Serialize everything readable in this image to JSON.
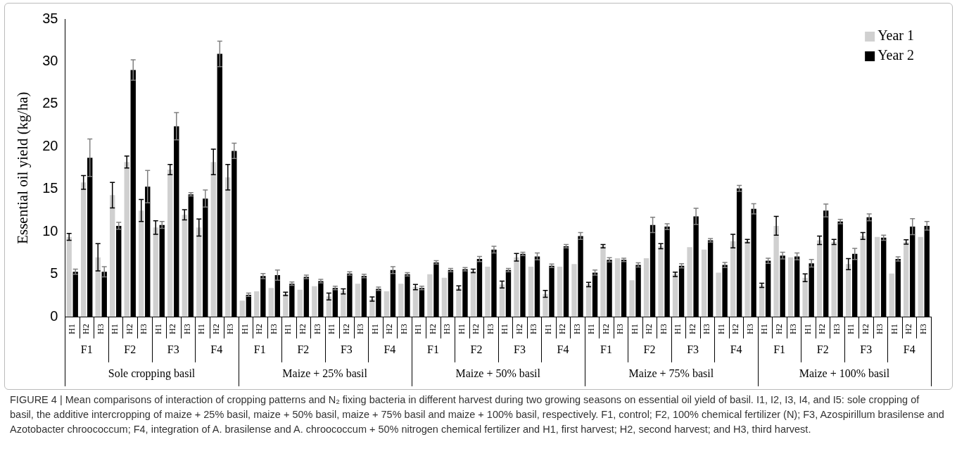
{
  "chart_data": {
    "type": "bar",
    "ylabel": "Essential oil yield (kg/ha)",
    "ylim": [
      0,
      35
    ],
    "yticks": [
      0,
      5,
      10,
      15,
      20,
      25,
      30,
      35
    ],
    "legend": "top right",
    "categories": [
      "H1",
      "H2",
      "H3",
      "H1",
      "H2",
      "H3",
      "H1",
      "H2",
      "H3",
      "H1",
      "H2",
      "H3",
      "H1",
      "H2",
      "H3",
      "H1",
      "H2",
      "H3",
      "H1",
      "H2",
      "H3",
      "H1",
      "H2",
      "H3",
      "H1",
      "H2",
      "H3",
      "H1",
      "H2",
      "H3",
      "H1",
      "H2",
      "H3",
      "H1",
      "H2",
      "H3",
      "H1",
      "H2",
      "H3",
      "H1",
      "H2",
      "H3",
      "H1",
      "H2",
      "H3",
      "H1",
      "H2",
      "H3",
      "H1",
      "H2",
      "H3",
      "H1",
      "H2",
      "H3",
      "H1",
      "H2",
      "H3",
      "H1",
      "H2",
      "H3"
    ],
    "series": [
      {
        "name": "Year 1",
        "color": "#d0d0d0",
        "values": [
          9.4,
          15.8,
          7.0,
          14.3,
          18.2,
          12.5,
          10.5,
          17.3,
          12.0,
          10.5,
          18.2,
          16.4,
          1.9,
          3.0,
          3.4,
          2.7,
          3.2,
          3.6,
          2.4,
          3.0,
          3.9,
          2.1,
          3.0,
          3.9,
          3.5,
          5.0,
          4.6,
          3.4,
          5.4,
          5.9,
          3.8,
          7.0,
          5.9,
          2.7,
          5.9,
          6.2,
          3.8,
          8.3,
          6.9,
          4.3,
          6.9,
          8.3,
          5.0,
          8.2,
          7.9,
          5.2,
          8.9,
          8.9,
          3.7,
          10.7,
          7.0,
          4.6,
          9.0,
          8.8,
          6.2,
          9.5,
          9.4,
          5.1,
          8.8,
          9.4
        ],
        "errors": [
          0.4,
          0.8,
          1.6,
          1.5,
          0.7,
          1.3,
          0.8,
          0.6,
          0.6,
          1.0,
          1.5,
          1.5,
          null,
          null,
          null,
          0.2,
          null,
          null,
          0.4,
          0.3,
          null,
          0.25,
          null,
          null,
          0.3,
          null,
          null,
          0.25,
          0.2,
          null,
          0.4,
          0.45,
          null,
          0.4,
          null,
          null,
          0.25,
          0.2,
          null,
          null,
          null,
          0.3,
          0.25,
          null,
          null,
          null,
          0.8,
          0.2,
          0.25,
          1.1,
          null,
          0.45,
          0.5,
          0.3,
          0.65,
          0.4,
          null,
          null,
          0.25,
          null
        ]
      },
      {
        "name": "Year 2",
        "color": "#000000",
        "values": [
          5.3,
          18.7,
          5.3,
          10.7,
          29.0,
          15.3,
          10.8,
          22.4,
          14.4,
          13.9,
          30.9,
          19.5,
          2.6,
          4.8,
          4.9,
          3.9,
          4.7,
          4.2,
          3.4,
          5.1,
          4.8,
          3.3,
          5.5,
          5.0,
          3.4,
          6.4,
          5.5,
          5.6,
          6.8,
          7.9,
          5.5,
          7.4,
          7.1,
          6.0,
          8.3,
          9.5,
          5.2,
          6.7,
          6.7,
          6.1,
          10.8,
          10.6,
          6.0,
          11.8,
          9.0,
          6.1,
          15.1,
          12.7,
          6.6,
          7.2,
          7.1,
          6.3,
          12.5,
          11.2,
          7.4,
          11.7,
          9.3,
          6.8,
          10.6,
          10.7
        ],
        "errors": [
          0.3,
          2.2,
          0.6,
          0.4,
          1.2,
          1.9,
          0.4,
          1.6,
          0.2,
          1.0,
          1.5,
          0.9,
          0.2,
          0.3,
          0.6,
          0.2,
          0.2,
          0.2,
          0.2,
          0.2,
          0.2,
          0.2,
          0.4,
          0.2,
          0.2,
          0.2,
          0.2,
          0.2,
          0.3,
          0.4,
          0.2,
          0.2,
          0.4,
          0.2,
          0.2,
          0.4,
          0.3,
          0.25,
          0.2,
          0.25,
          0.9,
          0.35,
          0.25,
          0.95,
          0.2,
          0.3,
          0.35,
          0.6,
          0.3,
          0.4,
          0.4,
          0.45,
          0.75,
          0.25,
          0.65,
          0.4,
          0.3,
          0.25,
          0.95,
          0.5
        ]
      }
    ],
    "annotations": [
      "F1",
      "F2",
      "F3",
      "F4",
      "F1",
      "F2",
      "F3",
      "F4",
      "F1",
      "F2",
      "F3",
      "F4",
      "F1",
      "F2",
      "F3",
      "F4",
      "F1",
      "F2",
      "F3",
      "F4",
      "Sole cropping basil",
      "Maize + 25% basil",
      "Maize + 50% basil",
      "Maize + 75% basil",
      "Maize + 100% basil",
      "FIGURE 4 | Mean comparisons of interaction of cropping patterns and N₂ fixing bacteria in different harvest during two growing seasons on essential oil yield of basil. I1, I2, I3, I4, and I5: sole cropping of basil, the additive intercropping of maize + 25% basil, maize + 50% basil, maize + 75% basil and maize + 100% basil, respectively. F1, control; F2, 100% chemical fertilizer (N); F3, Azospirillum brasilense and Azotobacter chroococcum; F4, integration of A. brasilense and A. chroococcum + 50% nitrogen chemical fertilizer and H1, first harvest; H2, second harvest; and H3, third harvest."
    ]
  }
}
